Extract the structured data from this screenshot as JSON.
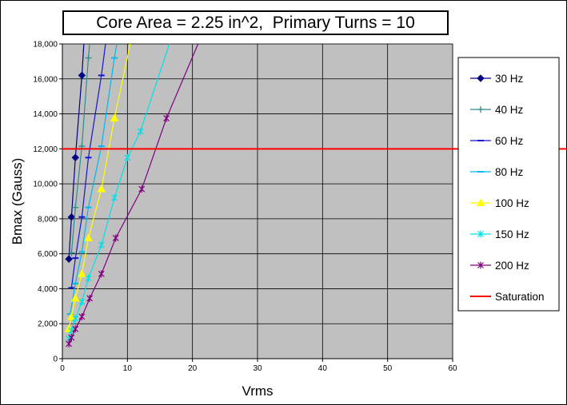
{
  "chart_data": {
    "type": "line",
    "title": "Core Area = 2.25 in^2,  Primary Turns = 10",
    "xlabel": "Vrms",
    "ylabel": "Bmax (Gauss)",
    "xlim": [
      0,
      60
    ],
    "ylim": [
      0,
      18000
    ],
    "xticks": [
      0,
      10,
      20,
      30,
      40,
      50,
      60
    ],
    "yticks": [
      0,
      2000,
      4000,
      6000,
      8000,
      10000,
      12000,
      14000,
      16000,
      18000
    ],
    "ytick_labels": [
      "0",
      "2,000",
      "4,000",
      "6,000",
      "8,000",
      "10,000",
      "12,000",
      "14,000",
      "16,000",
      "18,000"
    ],
    "grid": true,
    "plot_background": "#c0c0c0",
    "legend_position": "right",
    "series": [
      {
        "name": "30 Hz",
        "color": "#000080",
        "marker": "diamond",
        "x": [
          1,
          1.4,
          2,
          3
        ],
        "y": [
          5700,
          8100,
          11500,
          16200
        ]
      },
      {
        "name": "40 Hz",
        "color": "#2e8b8b",
        "marker": "plus",
        "x": [
          1.4,
          2,
          3,
          4
        ],
        "y": [
          6050,
          8650,
          12150,
          17200
        ]
      },
      {
        "name": "60 Hz",
        "color": "#1515d0",
        "marker": "dash",
        "x": [
          1.4,
          2,
          3,
          4,
          6
        ],
        "y": [
          4050,
          5750,
          8100,
          11500,
          16200
        ]
      },
      {
        "name": "80 Hz",
        "color": "#00b7ee",
        "marker": "dash",
        "x": [
          1.2,
          2,
          3,
          4,
          6,
          8
        ],
        "y": [
          2550,
          4300,
          6100,
          8650,
          12150,
          17200
        ]
      },
      {
        "name": "100 Hz",
        "color": "#ffff00",
        "marker": "triangle",
        "x": [
          1,
          1.4,
          2,
          3,
          4,
          6,
          8
        ],
        "y": [
          1700,
          2400,
          3450,
          4850,
          6900,
          9700,
          13750
        ]
      },
      {
        "name": "150 Hz",
        "color": "#00e0e8",
        "marker": "star",
        "x": [
          1,
          1.4,
          2,
          3,
          4,
          6,
          8,
          10,
          12
        ],
        "y": [
          1150,
          1600,
          2300,
          3250,
          4600,
          6500,
          9200,
          11500,
          13000
        ]
      },
      {
        "name": "200 Hz",
        "color": "#800080",
        "marker": "star",
        "x": [
          1,
          1.4,
          2,
          3,
          4.2,
          6,
          8.2,
          12.2,
          16
        ],
        "y": [
          850,
          1200,
          1700,
          2400,
          3450,
          4850,
          6900,
          9700,
          13750
        ]
      },
      {
        "name": "Saturation",
        "color": "#ff0000",
        "marker": "none",
        "x": [
          0,
          60
        ],
        "y": [
          12000,
          12000
        ]
      }
    ]
  }
}
